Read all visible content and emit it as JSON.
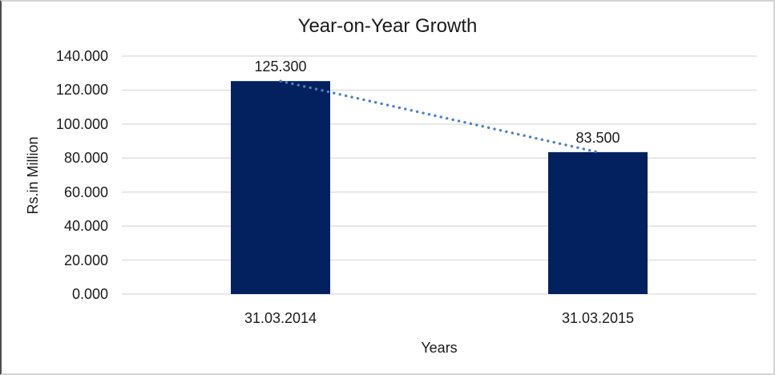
{
  "window": {
    "background": "#ffffff",
    "frame_color": "#d4d4d4",
    "frame_left_color": "#4d4d4d"
  },
  "chart_data": {
    "type": "bar",
    "title": "Year-on-Year Growth",
    "xlabel": "Years",
    "ylabel": "Rs.in Million",
    "categories": [
      "31.03.2014",
      "31.03.2015"
    ],
    "values": [
      125.3,
      83.5
    ],
    "value_labels": [
      "125.300",
      "83.500"
    ],
    "ylim": [
      0,
      140
    ],
    "yticks": [
      {
        "value": 0,
        "label": "0.000"
      },
      {
        "value": 20,
        "label": "20.000"
      },
      {
        "value": 40,
        "label": "40.000"
      },
      {
        "value": 60,
        "label": "60.000"
      },
      {
        "value": 80,
        "label": "80.000"
      },
      {
        "value": 100,
        "label": "100.000"
      },
      {
        "value": 120,
        "label": "120.000"
      },
      {
        "value": 140,
        "label": "140.000"
      }
    ],
    "grid": true,
    "legend": "none",
    "bar_color": "#02215e",
    "gridline_color": "#d9d9d9",
    "text_color": "#1a1a1a",
    "trendline": {
      "style": "dotted",
      "color": "#4a81c4",
      "connects": "bar tops",
      "x": [
        "31.03.2014",
        "31.03.2015"
      ],
      "y": [
        125.3,
        83.5
      ]
    }
  }
}
